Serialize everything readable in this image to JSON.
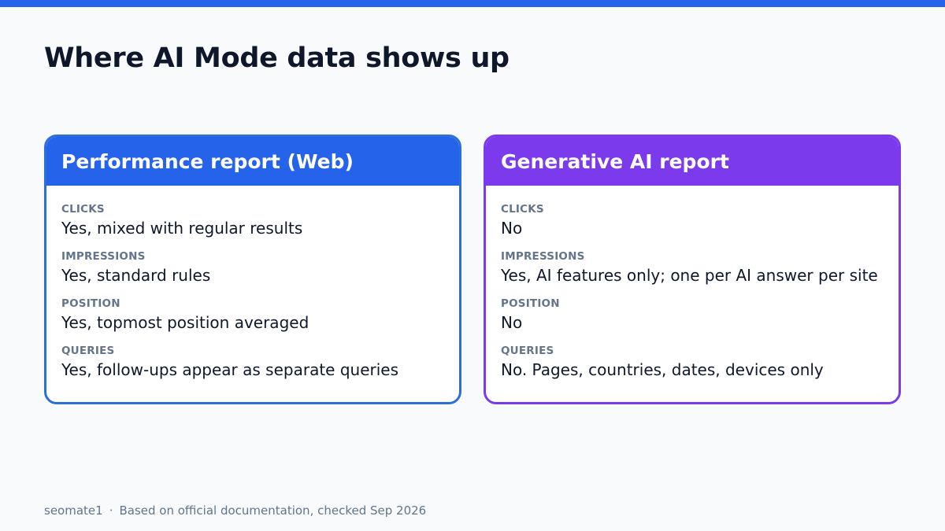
{
  "colors": {
    "accent_blue": "#2563eb",
    "accent_purple": "#7c3aed",
    "title_text": "#0f172a",
    "label_text": "#64748b",
    "background": "#f8fafc"
  },
  "slide": {
    "title": "Where AI Mode data shows up"
  },
  "cards": [
    {
      "title": "Performance report (Web)",
      "metrics": [
        {
          "label": "CLICKS",
          "value": "Yes, mixed with regular results"
        },
        {
          "label": "IMPRESSIONS",
          "value": "Yes, standard rules"
        },
        {
          "label": "POSITION",
          "value": "Yes, topmost position averaged"
        },
        {
          "label": "QUERIES",
          "value": "Yes, follow-ups appear as separate queries"
        }
      ]
    },
    {
      "title": "Generative AI report",
      "metrics": [
        {
          "label": "CLICKS",
          "value": "No"
        },
        {
          "label": "IMPRESSIONS",
          "value": "Yes, AI features only; one per AI answer per site"
        },
        {
          "label": "POSITION",
          "value": "No"
        },
        {
          "label": "QUERIES",
          "value": "No. Pages, countries, dates, devices only"
        }
      ]
    }
  ],
  "footer": {
    "brand": "seomate1",
    "separator": "·",
    "note": "Based on official documentation, checked Sep 2026"
  }
}
